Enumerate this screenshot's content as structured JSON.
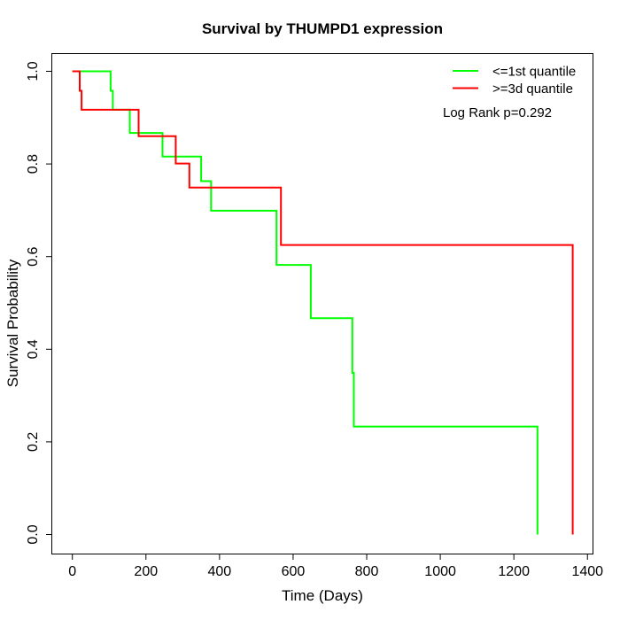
{
  "chart_data": {
    "type": "line",
    "subtype": "kaplan-meier-step",
    "title": "Survival by THUMPD1 expression",
    "xlabel": "Time (Days)",
    "ylabel": "Survival Probability",
    "xlim": [
      0,
      1400
    ],
    "ylim": [
      0.0,
      1.0
    ],
    "grid": false,
    "x_axis": {
      "ticks": [
        0,
        200,
        400,
        600,
        800,
        1000,
        1200,
        1400
      ],
      "tick_labels": [
        "0",
        "200",
        "400",
        "600",
        "800",
        "1000",
        "1200",
        "1400"
      ]
    },
    "y_axis": {
      "ticks": [
        0.0,
        0.2,
        0.4,
        0.6,
        0.8,
        1.0
      ],
      "tick_labels": [
        "0.0",
        "0.2",
        "0.4",
        "0.6",
        "0.8",
        "1.0"
      ]
    },
    "legend": {
      "position": "top-right",
      "entries": [
        {
          "id": "first-quantile",
          "label": "<=1st quantile",
          "color": "#00ff00"
        },
        {
          "id": "third-quantile",
          "label": ">=3d quantile",
          "color": "#ff0000"
        }
      ]
    },
    "annotation": "Log Rank p=0.292",
    "series": [
      {
        "id": "first-quantile",
        "name": "<=1st quantile",
        "color": "#00ff00",
        "start": [
          0,
          1.0
        ],
        "steps": [
          [
            104,
            0.958
          ],
          [
            110,
            0.917
          ],
          [
            156,
            0.867
          ],
          [
            245,
            0.816
          ],
          [
            350,
            0.763
          ],
          [
            377,
            0.699
          ],
          [
            555,
            0.582
          ],
          [
            648,
            0.467
          ],
          [
            761,
            0.349
          ],
          [
            765,
            0.233
          ],
          [
            1264,
            0.0
          ]
        ]
      },
      {
        "id": "third-quantile",
        "name": ">=3d quantile",
        "color": "#ff0000",
        "start": [
          0,
          1.0
        ],
        "steps": [
          [
            20,
            0.958
          ],
          [
            25,
            0.917
          ],
          [
            180,
            0.86
          ],
          [
            281,
            0.801
          ],
          [
            318,
            0.749
          ],
          [
            567,
            0.625
          ],
          [
            1360,
            0.0
          ]
        ]
      }
    ]
  }
}
